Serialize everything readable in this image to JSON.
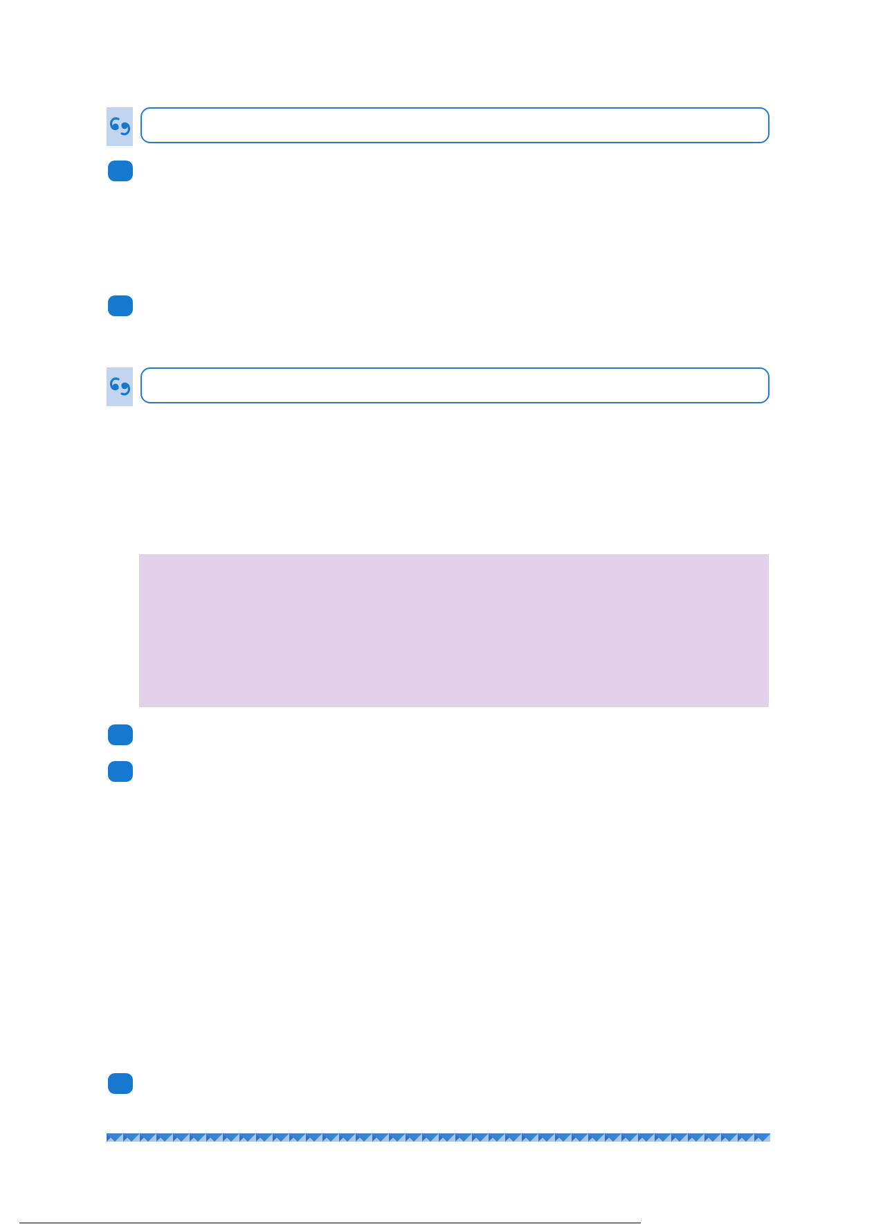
{
  "page": {
    "background": "#ffffff"
  },
  "colors": {
    "accent_blue": "#1678cf",
    "header_border": "#1f7ad0",
    "icon_background": "#c3d4ef",
    "panel_background": "#e3d0e9",
    "stripe_light": "#a8c8ea",
    "stripe_dark": "#3b82d4"
  },
  "sections": [
    {
      "icon": "quote-icon",
      "heading": ""
    },
    {
      "icon": "quote-icon",
      "heading": ""
    }
  ],
  "steps": [
    {
      "label": ""
    },
    {
      "label": ""
    },
    {
      "label": ""
    },
    {
      "label": ""
    },
    {
      "label": ""
    }
  ],
  "highlight_panel": {
    "text": ""
  },
  "footer": {
    "text": ""
  }
}
